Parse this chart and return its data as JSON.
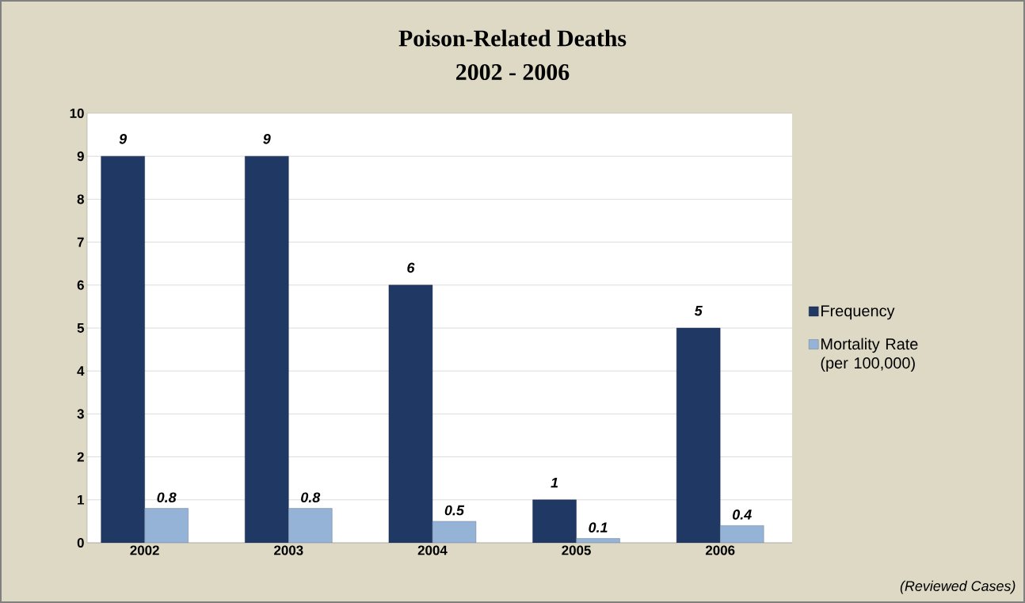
{
  "chart_data": {
    "type": "bar",
    "title": "Poison-Related Deaths",
    "subtitle": "2002 - 2006",
    "categories": [
      "2002",
      "2003",
      "2004",
      "2005",
      "2006"
    ],
    "series": [
      {
        "name": "Frequency",
        "color": "#1f3864",
        "values": [
          9,
          9,
          6,
          1,
          5
        ]
      },
      {
        "name": "Mortality Rate (per 100,000)",
        "color": "#95b3d7",
        "values": [
          0.8,
          0.8,
          0.5,
          0.1,
          0.4
        ]
      }
    ],
    "ylim": [
      0,
      10
    ],
    "yticks": [
      0,
      1,
      2,
      3,
      4,
      5,
      6,
      7,
      8,
      9,
      10
    ],
    "grid": "y",
    "legend": "right",
    "data_labels": true,
    "annotations": [
      "(Reviewed Cases)"
    ]
  }
}
